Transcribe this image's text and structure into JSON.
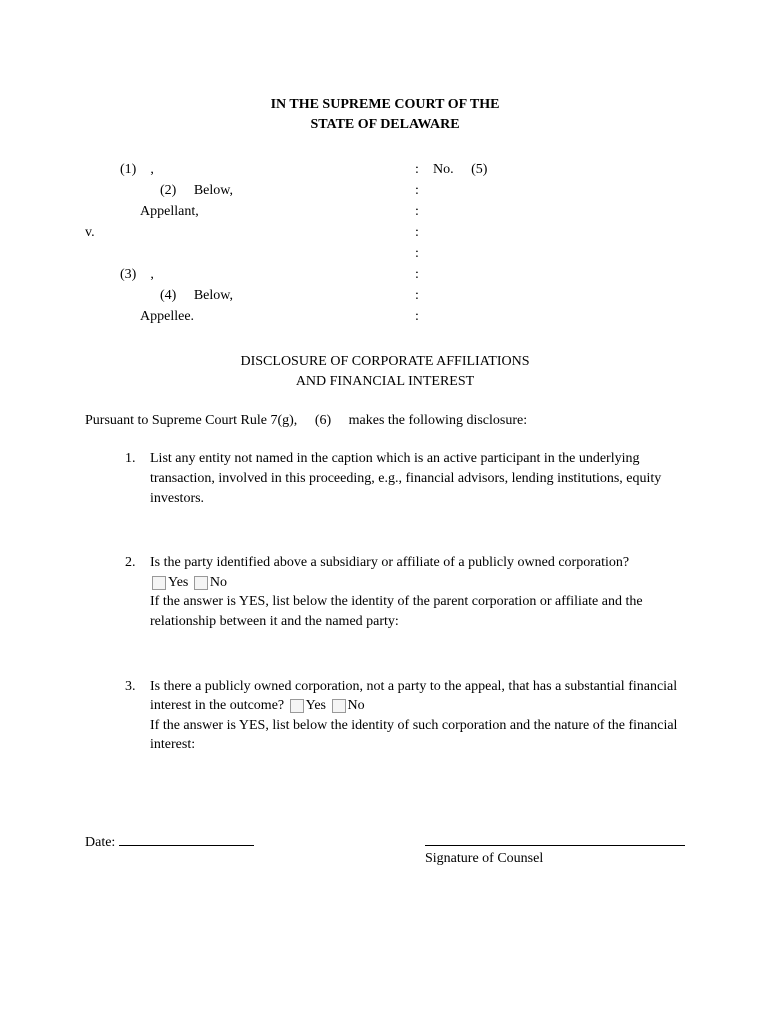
{
  "header": {
    "line1": "IN THE SUPREME COURT OF THE",
    "line2": "STATE OF DELAWARE"
  },
  "caption": {
    "blank1": "(1)",
    "blank2": "(2)",
    "below1": "Below,",
    "appellant": "Appellant,",
    "vs": "v.",
    "blank3": "(3)",
    "blank4": "(4)",
    "below2": "Below,",
    "appellee": "Appellee.",
    "no_label": "No.",
    "blank5": "(5)"
  },
  "title": {
    "line1": "DISCLOSURE OF CORPORATE AFFILIATIONS",
    "line2": "AND FINANCIAL INTEREST"
  },
  "intro": {
    "prefix": "Pursuant to Supreme Court Rule 7(g),",
    "blank6": "(6)",
    "suffix": "makes the following disclosure:"
  },
  "items": {
    "n1": "1.",
    "q1": "List any entity not named in the caption which is an active participant in the underlying transaction, involved in this proceeding, e.g., financial advisors, lending institutions, equity investors.",
    "n2": "2.",
    "q2a": "Is the party identified above a subsidiary or affiliate of a publicly owned corporation?",
    "yes": "Yes",
    "no": "No",
    "q2b": "If the answer is YES, list below the identity of the parent corporation or affiliate and the relationship between it and the named party:",
    "n3": "3.",
    "q3a": "Is there a publicly owned corporation, not a party to the appeal, that has a substantial financial interest in the outcome?",
    "q3b": "If the answer is YES, list below the identity of such corporation and the nature of the financial interest:"
  },
  "footer": {
    "date_label": "Date:",
    "sig_label": "Signature of Counsel"
  }
}
